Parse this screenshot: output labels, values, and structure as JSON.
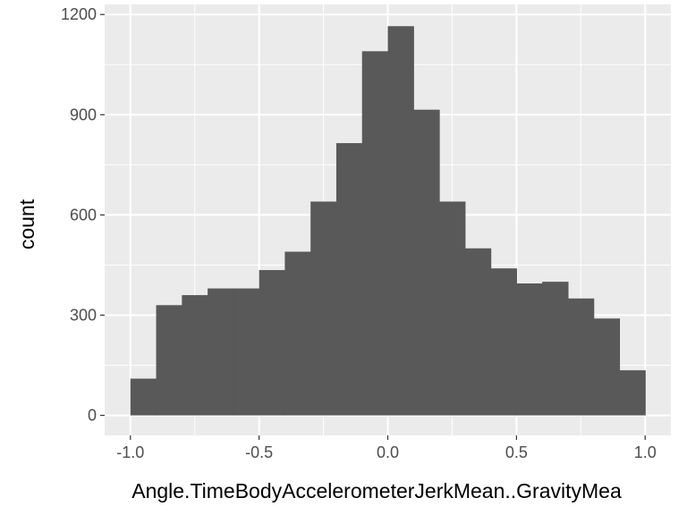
{
  "chart_data": {
    "type": "bar",
    "title": "",
    "xlabel": "Angle.TimeBodyAccelerometerJerkMean..GravityMea",
    "ylabel": "count",
    "xlim": [
      -1.1,
      1.1
    ],
    "ylim": [
      -60,
      1230
    ],
    "x_ticks": [
      -1.0,
      -0.5,
      0.0,
      0.5,
      1.0
    ],
    "x_tick_labels": [
      "-1.0",
      "-0.5",
      "0.0",
      "0.5",
      "1.0"
    ],
    "y_ticks": [
      0,
      300,
      600,
      900,
      1200
    ],
    "y_tick_labels": [
      "0",
      "300",
      "600",
      "900",
      "1200"
    ],
    "grid": true,
    "bin_edges": [
      -1.0,
      -0.9,
      -0.8,
      -0.7,
      -0.6,
      -0.5,
      -0.4,
      -0.3,
      -0.2,
      -0.1,
      0.0,
      0.1,
      0.2,
      0.3,
      0.4,
      0.5,
      0.6,
      0.7,
      0.8,
      0.9,
      1.0
    ],
    "values": [
      110,
      330,
      360,
      380,
      380,
      435,
      490,
      640,
      815,
      1090,
      1165,
      915,
      640,
      500,
      440,
      395,
      400,
      350,
      290,
      135
    ],
    "bar_color": "#595959",
    "panel_color": "#ebebeb",
    "grid_color": "#ffffff"
  }
}
